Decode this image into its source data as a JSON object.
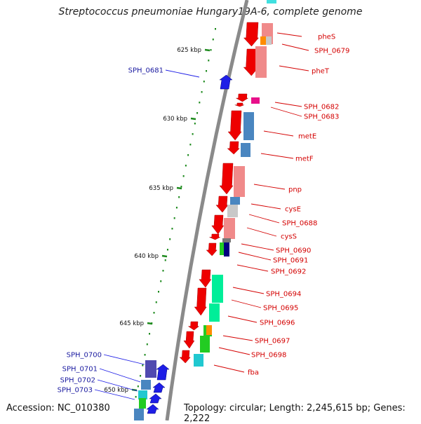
{
  "title": "Streptococcus pneumoniae Hungary19A-6, complete genome",
  "footer": {
    "accession": "Accession: NC_010380",
    "topology": "Topology: circular; Length: 2,245,615 bp; Genes: 2,222"
  },
  "colors": {
    "backbone": "#8a8a8a",
    "label_right": "#d40000",
    "label_left": "#1a1aa0",
    "tick": "#1d8a1d",
    "forward_gene": "#1e1ee6",
    "reverse_gene": "#ee0000"
  },
  "kbp_marks": [
    "625 kbp",
    "630 kbp",
    "635 kbp",
    "640 kbp",
    "645 kbp",
    "650 kbp"
  ],
  "right_labels": [
    "pheS",
    "SPH_0679",
    "pheT",
    "SPH_0682",
    "SPH_0683",
    "metE",
    "metF",
    "pnp",
    "cysE",
    "SPH_0688",
    "cysS",
    "SPH_0690",
    "SPH_0691",
    "SPH_0692",
    "SPH_0694",
    "SPH_0695",
    "SPH_0696",
    "SPH_0697",
    "SPH_0698",
    "fba"
  ],
  "left_labels": [
    "SPH_0681",
    "SPH_0700",
    "SPH_0701",
    "SPH_0702",
    "SPH_0703"
  ]
}
